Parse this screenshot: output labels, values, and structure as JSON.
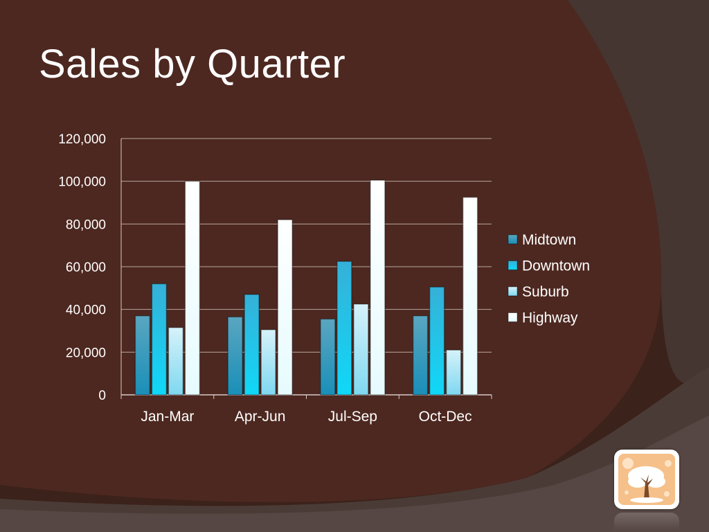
{
  "slide": {
    "title": "Sales by Quarter",
    "logo_icon": "tree-icon"
  },
  "colors": {
    "background": "#4a2a20",
    "Midtown": "#2a8db0",
    "Downtown": "#22c2e8",
    "Suburb": "#a8e8f6",
    "Highway": "#ffffff"
  },
  "chart_data": {
    "type": "bar",
    "title": "",
    "xlabel": "",
    "ylabel": "",
    "categories": [
      "Jan-Mar",
      "Apr-Jun",
      "Jul-Sep",
      "Oct-Dec"
    ],
    "series": [
      {
        "name": "Midtown",
        "values": [
          37000,
          36500,
          35500,
          37000
        ]
      },
      {
        "name": "Downtown",
        "values": [
          52000,
          47000,
          62500,
          50500
        ]
      },
      {
        "name": "Suburb",
        "values": [
          31500,
          30500,
          42500,
          21000
        ]
      },
      {
        "name": "Highway",
        "values": [
          100000,
          82000,
          100500,
          92500
        ]
      }
    ],
    "ylim": [
      0,
      120000
    ],
    "yticks": [
      "0",
      "20,000",
      "40,000",
      "60,000",
      "80,000",
      "100,000",
      "120,000"
    ],
    "grid": true,
    "legend": "right"
  }
}
